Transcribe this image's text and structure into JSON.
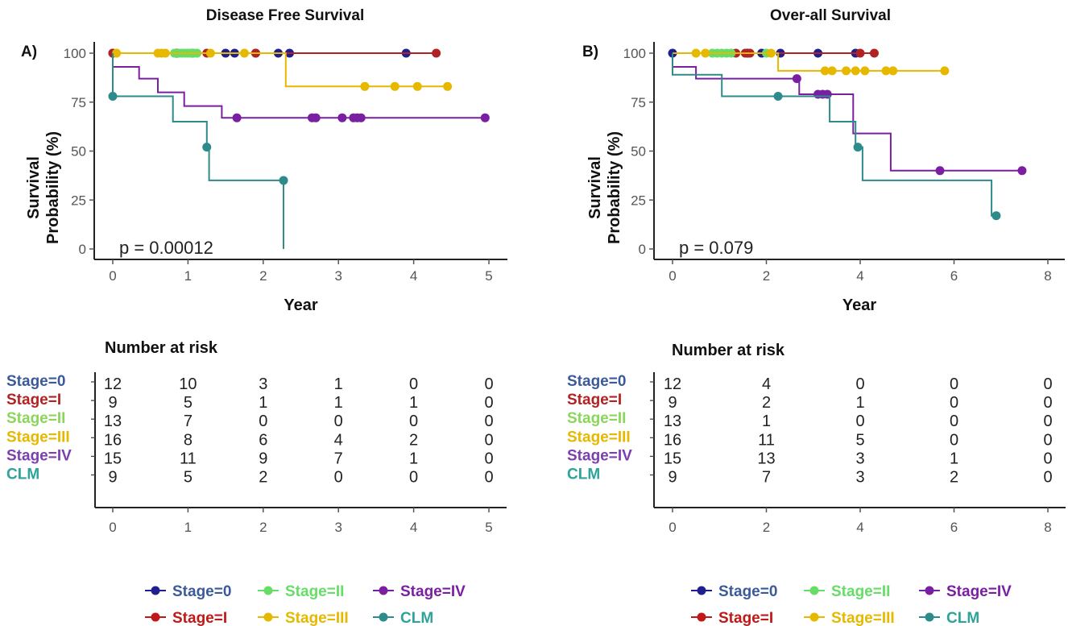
{
  "chart_data": [
    {
      "type": "line",
      "subtype": "kaplan-meier",
      "panel_label": "A)",
      "title": "Disease Free Survival",
      "xlabel": "Year",
      "ylabel": "Survival Probability (%)",
      "xlim": [
        0,
        5
      ],
      "ylim": [
        0,
        100
      ],
      "xticks": [
        0,
        1,
        2,
        3,
        4,
        5
      ],
      "yticks": [
        0,
        25,
        50,
        75,
        100
      ],
      "pvalue": "p = 0.00012",
      "series": [
        {
          "name": "Stage=0",
          "color": "#1f1f8f",
          "steps": [
            [
              0,
              100
            ],
            [
              2.35,
              100
            ]
          ],
          "censors": [
            [
              0,
              100
            ],
            [
              1.5,
              100
            ],
            [
              1.62,
              100
            ],
            [
              1.9,
              100
            ],
            [
              2.2,
              100
            ],
            [
              2.35,
              100
            ],
            [
              3.9,
              100
            ]
          ]
        },
        {
          "name": "Stage=I",
          "color": "#b22222",
          "steps": [
            [
              0,
              100
            ],
            [
              4.3,
              100
            ]
          ],
          "censors": [
            [
              0,
              100
            ],
            [
              0.85,
              100
            ],
            [
              1.05,
              100
            ],
            [
              1.25,
              100
            ],
            [
              1.9,
              100
            ],
            [
              4.3,
              100
            ]
          ]
        },
        {
          "name": "Stage=II",
          "color": "#66dd66",
          "steps": [
            [
              0,
              100
            ],
            [
              1.1,
              100
            ]
          ],
          "censors": [
            [
              0.82,
              100
            ],
            [
              0.88,
              100
            ],
            [
              0.92,
              100
            ],
            [
              0.96,
              100
            ],
            [
              1.0,
              100
            ],
            [
              1.04,
              100
            ],
            [
              1.08,
              100
            ],
            [
              1.12,
              100
            ]
          ]
        },
        {
          "name": "Stage=III",
          "color": "#e6b800",
          "steps": [
            [
              0,
              100
            ],
            [
              2.3,
              100
            ],
            [
              2.3,
              83
            ],
            [
              4.45,
              83
            ]
          ],
          "censors": [
            [
              0.05,
              100
            ],
            [
              0.6,
              100
            ],
            [
              0.65,
              100
            ],
            [
              0.7,
              100
            ],
            [
              1.3,
              100
            ],
            [
              1.75,
              100
            ],
            [
              3.35,
              83
            ],
            [
              3.75,
              83
            ],
            [
              4.05,
              83
            ],
            [
              4.45,
              83
            ]
          ]
        },
        {
          "name": "Stage=IV",
          "color": "#7b1fa2",
          "steps": [
            [
              0,
              100
            ],
            [
              0,
              93
            ],
            [
              0.35,
              93
            ],
            [
              0.35,
              87
            ],
            [
              0.6,
              87
            ],
            [
              0.6,
              80
            ],
            [
              0.95,
              80
            ],
            [
              0.95,
              73
            ],
            [
              1.45,
              73
            ],
            [
              1.45,
              67
            ],
            [
              4.95,
              67
            ]
          ],
          "censors": [
            [
              1.65,
              67
            ],
            [
              2.65,
              67
            ],
            [
              2.7,
              67
            ],
            [
              3.05,
              67
            ],
            [
              3.2,
              67
            ],
            [
              3.25,
              67
            ],
            [
              3.3,
              67
            ],
            [
              4.95,
              67
            ]
          ]
        },
        {
          "name": "CLM",
          "color": "#2e8b8b",
          "steps": [
            [
              0,
              100
            ],
            [
              0,
              78
            ],
            [
              0.8,
              78
            ],
            [
              0.8,
              65
            ],
            [
              1.25,
              65
            ],
            [
              1.25,
              52
            ],
            [
              1.28,
              52
            ],
            [
              1.28,
              35
            ],
            [
              2.27,
              35
            ],
            [
              2.27,
              0
            ]
          ],
          "censors": [
            [
              0,
              78
            ],
            [
              1.25,
              52
            ],
            [
              2.27,
              35
            ]
          ]
        }
      ]
    },
    {
      "type": "line",
      "subtype": "kaplan-meier",
      "panel_label": "B)",
      "title": "Over-all Survival",
      "xlabel": "Year",
      "ylabel": "Survival Probability (%)",
      "xlim": [
        0,
        8
      ],
      "ylim": [
        0,
        100
      ],
      "xticks": [
        0,
        2,
        4,
        6,
        8
      ],
      "yticks": [
        0,
        25,
        50,
        75,
        100
      ],
      "pvalue": "p = 0.079",
      "series": [
        {
          "name": "Stage=0",
          "color": "#1f1f8f",
          "steps": [
            [
              0,
              100
            ],
            [
              3.9,
              100
            ]
          ],
          "censors": [
            [
              0,
              100
            ],
            [
              1.6,
              100
            ],
            [
              1.9,
              100
            ],
            [
              2.3,
              100
            ],
            [
              3.1,
              100
            ],
            [
              3.9,
              100
            ]
          ]
        },
        {
          "name": "Stage=I",
          "color": "#b22222",
          "steps": [
            [
              0,
              100
            ],
            [
              4.3,
              100
            ]
          ],
          "censors": [
            [
              1.35,
              100
            ],
            [
              1.55,
              100
            ],
            [
              1.65,
              100
            ],
            [
              4.0,
              100
            ],
            [
              4.3,
              100
            ]
          ]
        },
        {
          "name": "Stage=II",
          "color": "#66dd66",
          "steps": [
            [
              0,
              100
            ],
            [
              2.0,
              100
            ]
          ],
          "censors": [
            [
              0.85,
              100
            ],
            [
              0.95,
              100
            ],
            [
              1.05,
              100
            ],
            [
              1.15,
              100
            ],
            [
              1.25,
              100
            ],
            [
              2.0,
              100
            ]
          ]
        },
        {
          "name": "Stage=III",
          "color": "#e6b800",
          "steps": [
            [
              0,
              100
            ],
            [
              2.25,
              100
            ],
            [
              2.25,
              91
            ],
            [
              5.8,
              91
            ]
          ],
          "censors": [
            [
              0.5,
              100
            ],
            [
              0.7,
              100
            ],
            [
              2.1,
              100
            ],
            [
              3.25,
              91
            ],
            [
              3.4,
              91
            ],
            [
              3.7,
              91
            ],
            [
              3.9,
              91
            ],
            [
              4.1,
              91
            ],
            [
              4.55,
              91
            ],
            [
              4.7,
              91
            ],
            [
              5.8,
              91
            ]
          ]
        },
        {
          "name": "Stage=IV",
          "color": "#7b1fa2",
          "steps": [
            [
              0,
              100
            ],
            [
              0,
              93
            ],
            [
              0.5,
              93
            ],
            [
              0.5,
              87
            ],
            [
              1.4,
              87
            ],
            [
              1.4,
              87
            ],
            [
              2.7,
              87
            ],
            [
              2.7,
              79
            ],
            [
              3.4,
              79
            ],
            [
              3.4,
              79
            ],
            [
              3.85,
              79
            ],
            [
              3.85,
              59
            ],
            [
              4.65,
              59
            ],
            [
              4.65,
              40
            ],
            [
              7.45,
              40
            ]
          ],
          "censors": [
            [
              2.65,
              87
            ],
            [
              3.1,
              79
            ],
            [
              3.2,
              79
            ],
            [
              3.3,
              79
            ],
            [
              5.7,
              40
            ],
            [
              7.45,
              40
            ]
          ]
        },
        {
          "name": "CLM",
          "color": "#2e8b8b",
          "steps": [
            [
              0,
              100
            ],
            [
              0,
              89
            ],
            [
              1.05,
              89
            ],
            [
              1.05,
              78
            ],
            [
              3.35,
              78
            ],
            [
              3.35,
              65
            ],
            [
              3.9,
              65
            ],
            [
              3.9,
              52
            ],
            [
              4.05,
              52
            ],
            [
              4.05,
              35
            ],
            [
              6.8,
              35
            ],
            [
              6.8,
              17
            ],
            [
              6.9,
              17
            ]
          ],
          "censors": [
            [
              2.25,
              78
            ],
            [
              3.95,
              52
            ],
            [
              6.9,
              17
            ]
          ]
        }
      ]
    }
  ],
  "risk_tables": [
    {
      "title": "Number at risk",
      "times": [
        0,
        1,
        2,
        3,
        4,
        5
      ],
      "rows": [
        {
          "label": "Stage=0",
          "color": "#3b5a9a",
          "values": [
            "12",
            "10",
            "3",
            "1",
            "0",
            "0"
          ]
        },
        {
          "label": "Stage=I",
          "color": "#b22222",
          "values": [
            "9",
            "5",
            "1",
            "1",
            "1",
            "0"
          ]
        },
        {
          "label": "Stage=II",
          "color": "#8bd65a",
          "values": [
            "13",
            "7",
            "0",
            "0",
            "0",
            "0"
          ]
        },
        {
          "label": "Stage=III",
          "color": "#e6b800",
          "values": [
            "16",
            "8",
            "6",
            "4",
            "2",
            "0"
          ]
        },
        {
          "label": "Stage=IV",
          "color": "#7b3fb0",
          "values": [
            "15",
            "11",
            "9",
            "7",
            "1",
            "0"
          ]
        },
        {
          "label": "CLM",
          "color": "#2ea39a",
          "values": [
            "9",
            "5",
            "2",
            "0",
            "0",
            "0"
          ]
        }
      ]
    },
    {
      "title": "Number at risk",
      "times": [
        0,
        2,
        4,
        6,
        8
      ],
      "rows": [
        {
          "label": "Stage=0",
          "color": "#3b5a9a",
          "values": [
            "12",
            "4",
            "0",
            "0",
            "0"
          ]
        },
        {
          "label": "Stage=I",
          "color": "#b22222",
          "values": [
            "9",
            "2",
            "1",
            "0",
            "0"
          ]
        },
        {
          "label": "Stage=II",
          "color": "#8bd65a",
          "values": [
            "13",
            "1",
            "0",
            "0",
            "0"
          ]
        },
        {
          "label": "Stage=III",
          "color": "#e6b800",
          "values": [
            "16",
            "11",
            "5",
            "0",
            "0"
          ]
        },
        {
          "label": "Stage=IV",
          "color": "#7b3fb0",
          "values": [
            "15",
            "13",
            "3",
            "1",
            "0"
          ]
        },
        {
          "label": "CLM",
          "color": "#2ea39a",
          "values": [
            "9",
            "7",
            "3",
            "2",
            "0"
          ]
        }
      ]
    }
  ],
  "legend": {
    "items": [
      {
        "label": "Stage=0",
        "text_color": "#3b5a9a",
        "marker_color": "#1f1f8f"
      },
      {
        "label": "Stage=II",
        "text_color": "#66dd66",
        "marker_color": "#66dd66"
      },
      {
        "label": "Stage=IV",
        "text_color": "#7b1fa2",
        "marker_color": "#7b1fa2"
      },
      {
        "label": "Stage=I",
        "text_color": "#c01818",
        "marker_color": "#c01818"
      },
      {
        "label": "Stage=III",
        "text_color": "#e6b800",
        "marker_color": "#e6b800"
      },
      {
        "label": "CLM",
        "text_color": "#2ea39a",
        "marker_color": "#2e8b8b"
      }
    ]
  }
}
